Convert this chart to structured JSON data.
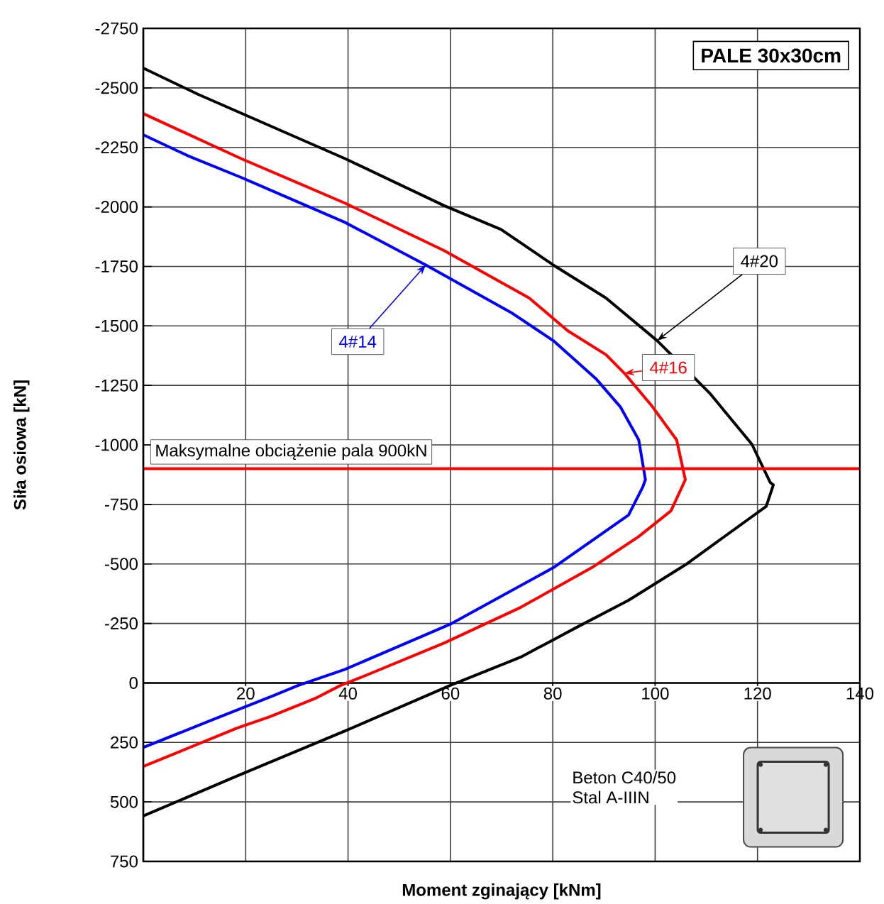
{
  "chart_data": {
    "type": "line",
    "xlabel": "Moment zginający [kNm]",
    "ylabel": "Siła osiowa [kN]",
    "xlim": [
      0,
      140
    ],
    "xticks": [
      20,
      40,
      60,
      80,
      100,
      120,
      140
    ],
    "ylim": [
      750,
      -2750
    ],
    "yticks": [
      -2750,
      -2500,
      -2250,
      -2000,
      -1750,
      -1500,
      -1250,
      -1000,
      -750,
      -500,
      -250,
      0,
      250,
      500,
      750
    ],
    "grid": true,
    "series": [
      {
        "name": "4#14",
        "color": "#0000ff",
        "x": [
          0,
          8.9,
          19.1,
          39.4,
          55.2,
          71.8,
          80.1,
          88.4,
          93.2,
          96.8,
          98.1,
          97.6,
          94.8,
          80.1,
          59.9,
          39.4,
          30.2,
          25.5,
          15,
          0
        ],
        "values": [
          -2303,
          -2213,
          -2124,
          -1935,
          -1756,
          -1557,
          -1438,
          -1279,
          -1160,
          -1021,
          -854,
          -824,
          -705,
          -484,
          -246,
          -57,
          11,
          53,
          142,
          271
        ]
      },
      {
        "name": "4#16",
        "color": "#ff0000",
        "x": [
          0,
          19.1,
          39.4,
          58.8,
          75.4,
          82.9,
          90.4,
          94,
          99.5,
          104.2,
          105.9,
          103.1,
          96.8,
          87.6,
          73.7,
          58.8,
          44.1,
          38.5,
          33.8,
          24.7,
          18.3,
          0
        ],
        "values": [
          -2392,
          -2203,
          -2016,
          -1816,
          -1617,
          -1480,
          -1379,
          -1301,
          -1160,
          -1021,
          -854,
          -723,
          -615,
          -484,
          -317,
          -168,
          -37,
          11,
          63,
          142,
          190,
          351
        ]
      },
      {
        "name": "4#20",
        "color": "#000000",
        "x": [
          0,
          10.8,
          39.4,
          58.8,
          69.9,
          80.1,
          90.4,
          100.4,
          110.6,
          118.9,
          122.5,
          123.1,
          121.7,
          105.9,
          94.8,
          84.8,
          73.7,
          59.9,
          54.3,
          39.4,
          18.3,
          0
        ],
        "values": [
          -2583,
          -2472,
          -2203,
          -2005,
          -1905,
          -1756,
          -1617,
          -1438,
          -1219,
          -1003,
          -842,
          -832,
          -742,
          -496,
          -347,
          -235,
          -108,
          11,
          63,
          202,
          391,
          559
        ]
      }
    ],
    "ref_lines": [
      {
        "axis": "y",
        "value": -900,
        "label": "Maksymalne obciążenie pala 900kN",
        "color": "#ff0000"
      }
    ],
    "annotations": [
      "PALE 30x30cm",
      "Beton C40/50",
      "Stal A-IIIN"
    ]
  }
}
